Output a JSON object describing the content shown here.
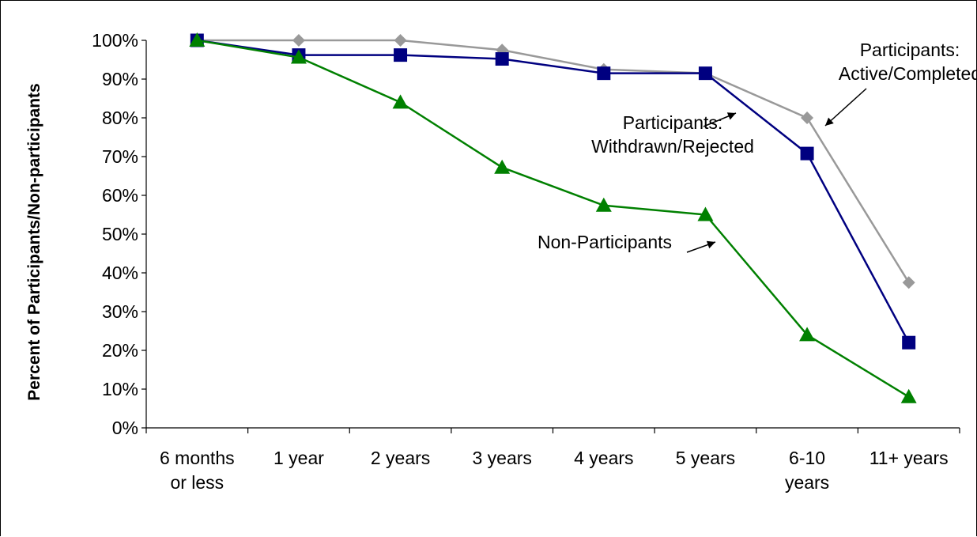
{
  "chart_data": {
    "type": "line",
    "title": "",
    "xlabel": "",
    "ylabel": "Percent of Participants/Non-participants",
    "ylim": [
      0,
      100
    ],
    "ytick_labels": [
      "0%",
      "10%",
      "20%",
      "30%",
      "40%",
      "50%",
      "60%",
      "70%",
      "80%",
      "90%",
      "100%"
    ],
    "categories": [
      [
        "6 months",
        "or less"
      ],
      [
        "1 year"
      ],
      [
        "2 years"
      ],
      [
        "3 years"
      ],
      [
        "4 years"
      ],
      [
        "5 years"
      ],
      [
        "6-10",
        "years"
      ],
      [
        "11+ years"
      ]
    ],
    "series": [
      {
        "name": "Participants: Active/Completed",
        "color": "#999999",
        "marker": "diamond",
        "values": [
          100,
          100,
          100,
          97.5,
          92.5,
          91.5,
          80,
          37.5
        ]
      },
      {
        "name": "Participants: Withdrawn/Rejected",
        "color": "#000080",
        "marker": "square",
        "values": [
          100,
          96.2,
          96.2,
          95.2,
          91.5,
          91.5,
          70.8,
          22
        ]
      },
      {
        "name": "Non-Participants",
        "color": "#008000",
        "marker": "triangle",
        "values": [
          100,
          95.6,
          84,
          67.2,
          57.4,
          55,
          24,
          8
        ]
      }
    ],
    "annotations": [
      {
        "lines": [
          "Participants:",
          "Active/Completed"
        ],
        "series": "Participants: Active/Completed"
      },
      {
        "lines": [
          "Participants:",
          "Withdrawn/Rejected"
        ],
        "series": "Participants: Withdrawn/Rejected"
      },
      {
        "lines": [
          "Non-Participants"
        ],
        "series": "Non-Participants"
      }
    ],
    "grid": false,
    "legend": "none"
  }
}
